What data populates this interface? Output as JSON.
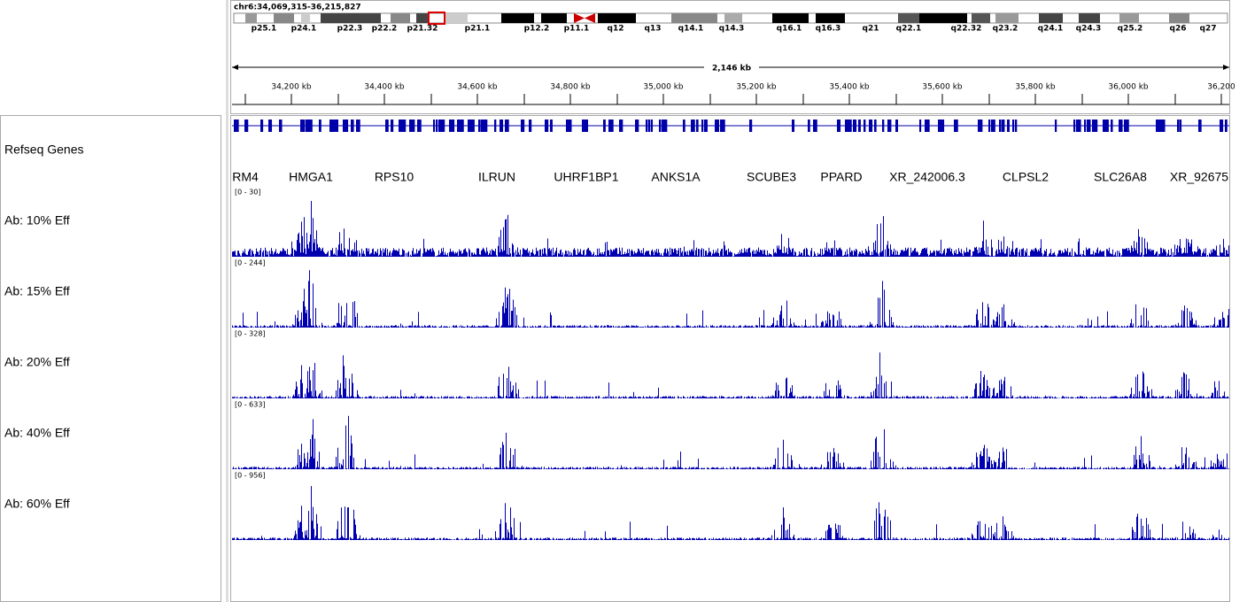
{
  "header": {
    "locus": "chr6:34,069,315-36,215,827",
    "cytobands": [
      "p25.1",
      "p24.1",
      "p22.3",
      "p22.2",
      "p21.32",
      "p21.1",
      "p12.2",
      "p11.1",
      "q12",
      "q13",
      "q14.1",
      "q14.3",
      "q16.1",
      "q16.3",
      "q21",
      "q22.1",
      "q22.32",
      "q23.2",
      "q24.1",
      "q24.3",
      "q25.2",
      "q26",
      "q27"
    ],
    "span": "2,146 kb",
    "ruler": [
      "34,200 kb",
      "34,400 kb",
      "34,600 kb",
      "34,800 kb",
      "35,000 kb",
      "35,200 kb",
      "35,400 kb",
      "35,600 kb",
      "35,800 kb",
      "36,000 kb",
      "36,200"
    ]
  },
  "tracks": [
    {
      "name": "Refseq Genes"
    },
    {
      "name": "Ab: 10% Eff",
      "range": "[0 - 30]"
    },
    {
      "name": "Ab: 15% Eff",
      "range": "[0 - 244]"
    },
    {
      "name": "Ab: 20% Eff",
      "range": "[0 - 328]"
    },
    {
      "name": "Ab: 40% Eff",
      "range": "[0 - 633]"
    },
    {
      "name": "Ab: 60% Eff",
      "range": "[0 - 956]"
    }
  ],
  "genes": [
    "RM4",
    "HMGA1",
    "RPS10",
    "ILRUN",
    "UHRF1BP1",
    "ANKS1A",
    "SCUBE3",
    "PPARD",
    "XR_242006.3",
    "CLPSL2",
    "SLC26A8",
    "XR_92675"
  ]
}
